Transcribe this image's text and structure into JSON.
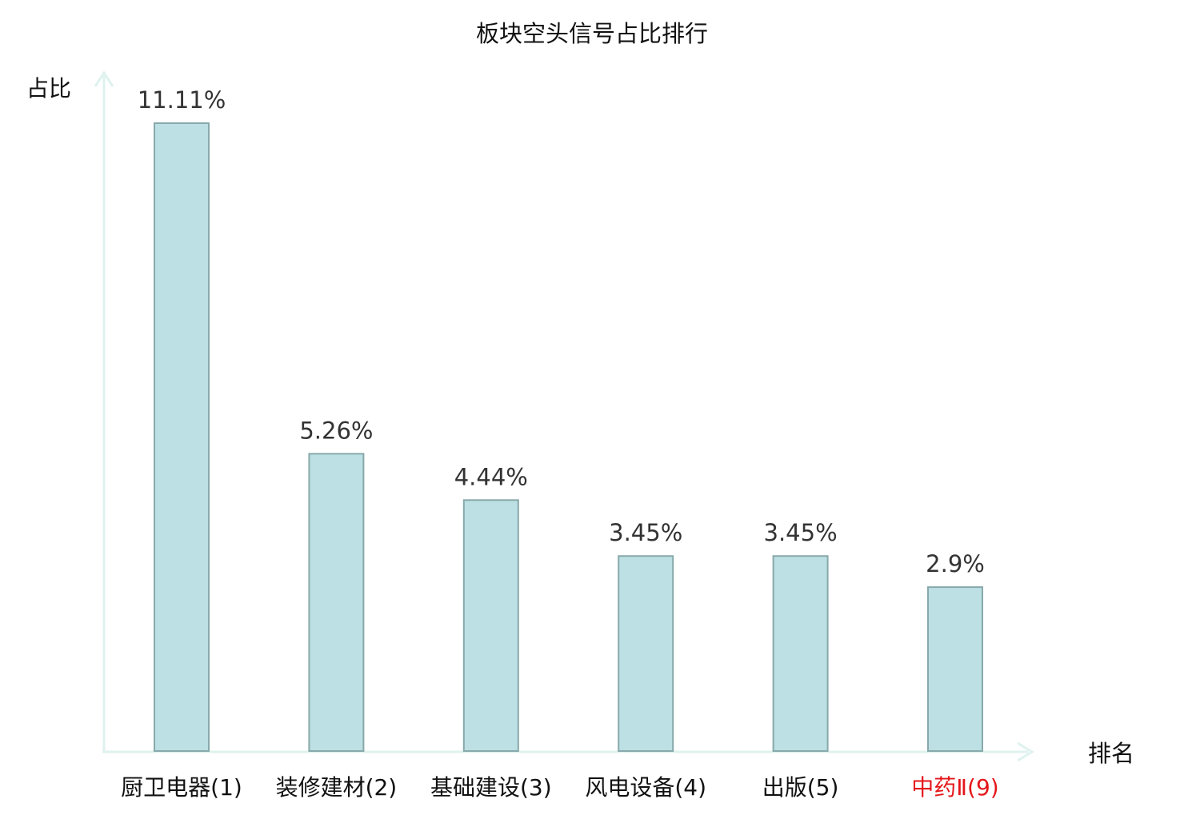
{
  "chart_data": {
    "type": "bar",
    "title": "板块空头信号占比排行",
    "ylabel": "占比",
    "xlabel": "排名",
    "categories": [
      "厨卫电器(1)",
      "装修建材(2)",
      "基础建设(3)",
      "风电设备(4)",
      "出版(5)",
      "中药Ⅱ(9)"
    ],
    "values": [
      11.11,
      5.26,
      4.44,
      3.45,
      3.45,
      2.9
    ],
    "value_labels": [
      "11.11%",
      "5.26%",
      "4.44%",
      "3.45%",
      "3.45%",
      "2.9%"
    ],
    "highlight_index": 5,
    "ylim": [
      0,
      11.11
    ],
    "grid": false,
    "legend": "none"
  },
  "colors": {
    "bar_fill": "#bce0e3",
    "bar_stroke": "#88a9ab",
    "axis": "#dff2ee",
    "text": "#333333",
    "highlight": "#e4161a"
  }
}
